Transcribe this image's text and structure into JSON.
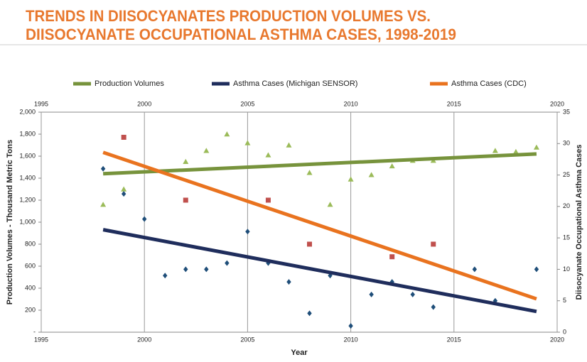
{
  "chart_data": {
    "type": "scatter",
    "title": [
      "TRENDS IN DIISOCYANATES PRODUCTION VOLUMES VS.",
      "DIISOCYANATE OCCUPATIONAL ASTHMA CASES, 1998-2019"
    ],
    "xlabel": "Year",
    "ylabel": "Production Volumes - Thousand Metric Tons",
    "y2label": "Diisocyanate Occupational Asthma Cases",
    "xlim": [
      1995,
      2020
    ],
    "xticks": [
      1995,
      2000,
      2005,
      2010,
      2015,
      2020
    ],
    "ylim": [
      0,
      2000
    ],
    "yticks": [
      {
        "value": 0,
        "label": "-"
      },
      200,
      400,
      600,
      800,
      {
        "value": 1000,
        "label": "1,000"
      },
      {
        "value": 1200,
        "label": "1,200"
      },
      {
        "value": 1400,
        "label": "1,400"
      },
      {
        "value": 1600,
        "label": "1,600"
      },
      {
        "value": 1800,
        "label": "1,800"
      },
      {
        "value": 2000,
        "label": "2,000"
      }
    ],
    "y2lim": [
      0,
      35
    ],
    "y2ticks": [
      0,
      5,
      10,
      15,
      20,
      25,
      30,
      35
    ],
    "grid": "x",
    "series": [
      {
        "name": "Production Volumes",
        "color": "#77933c",
        "marker": "triangle",
        "marker_color": "#9bbb59",
        "axis": "y",
        "x": [
          1998,
          1999,
          2002,
          2003,
          2004,
          2005,
          2006,
          2007,
          2008,
          2009,
          2010,
          2011,
          2012,
          2013,
          2014,
          2017,
          2018,
          2019
        ],
        "values": [
          1160,
          1300,
          1550,
          1650,
          1800,
          1720,
          1610,
          1700,
          1450,
          1160,
          1390,
          1430,
          1510,
          1560,
          1560,
          1650,
          1640,
          1680
        ],
        "trend": {
          "x": [
            1998,
            2019
          ],
          "values": [
            1440,
            1620
          ]
        }
      },
      {
        "name": "Asthma Cases (Michigan SENSOR)",
        "color": "#1f2d5c",
        "marker": "diamond",
        "marker_color": "#1f4e79",
        "axis": "y2",
        "x": [
          1998,
          1999,
          2000,
          2001,
          2002,
          2003,
          2004,
          2005,
          2006,
          2007,
          2008,
          2009,
          2010,
          2011,
          2012,
          2013,
          2014,
          2016,
          2017,
          2019
        ],
        "values": [
          26,
          22,
          18,
          9,
          10,
          10,
          11,
          16,
          11,
          8,
          3,
          9,
          1,
          6,
          8,
          6,
          4,
          10,
          5,
          10
        ],
        "trend": {
          "x": [
            1998,
            2019
          ],
          "values": [
            16.3,
            3.3
          ]
        }
      },
      {
        "name": "Asthma Cases (CDC)",
        "color": "#e9731f",
        "marker": "square",
        "marker_color": "#c0504d",
        "axis": "y2",
        "x": [
          1999,
          2002,
          2006,
          2008,
          2012,
          2014
        ],
        "values": [
          31,
          21,
          21,
          14,
          12,
          14
        ],
        "trend": {
          "x": [
            1998,
            2019
          ],
          "values": [
            28.6,
            5.3
          ]
        }
      }
    ]
  }
}
